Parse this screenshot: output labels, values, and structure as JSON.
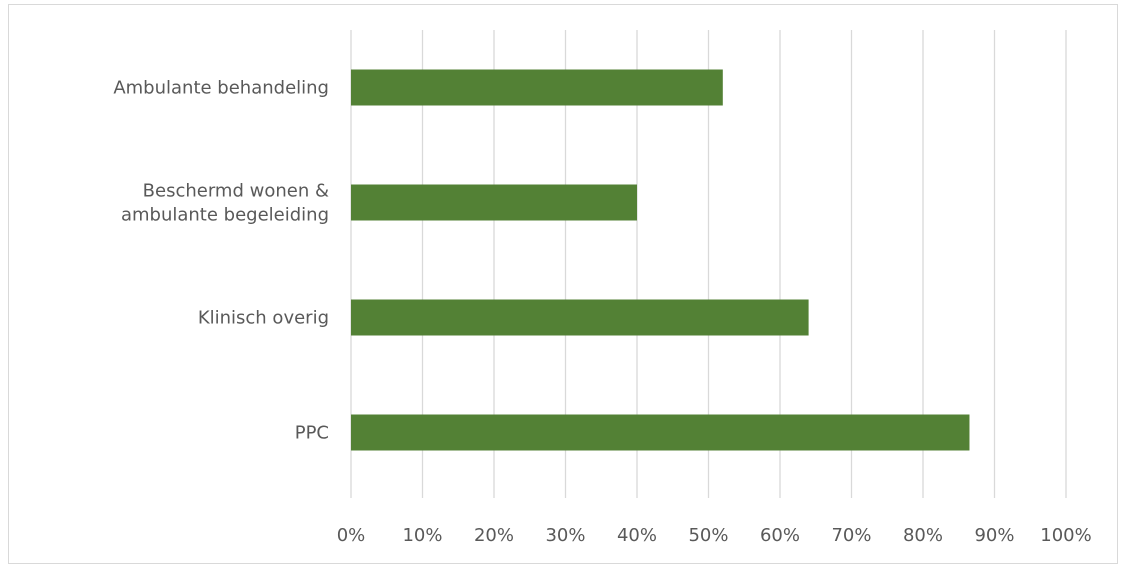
{
  "chart_data": {
    "type": "bar",
    "orientation": "horizontal",
    "categories": [
      [
        "Ambulante behandeling"
      ],
      [
        "Beschermd wonen &",
        "ambulante begeleiding"
      ],
      [
        "Klinisch overig"
      ],
      [
        "PPC"
      ]
    ],
    "values": [
      0.52,
      0.4,
      0.64,
      0.865
    ],
    "xlim": [
      0,
      1
    ],
    "xticks": [
      0,
      0.1,
      0.2,
      0.3,
      0.4,
      0.5,
      0.6,
      0.7,
      0.8,
      0.9,
      1.0
    ],
    "xtick_labels": [
      "0%",
      "10%",
      "20%",
      "30%",
      "40%",
      "50%",
      "60%",
      "70%",
      "80%",
      "90%",
      "100%"
    ],
    "title": "",
    "xlabel": "",
    "ylabel": "",
    "grid": "vertical",
    "legend": "none",
    "colors": {
      "bar": "#538135",
      "grid": "#d9d9d9",
      "text": "#595959",
      "border": "#d9d9d9"
    }
  }
}
